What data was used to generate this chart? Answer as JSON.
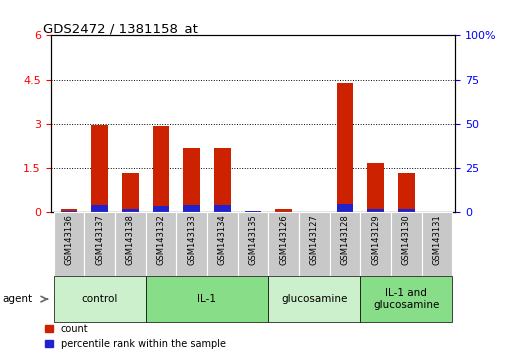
{
  "title": "GDS2472 / 1381158_at",
  "samples": [
    "GSM143136",
    "GSM143137",
    "GSM143138",
    "GSM143132",
    "GSM143133",
    "GSM143134",
    "GSM143135",
    "GSM143126",
    "GSM143127",
    "GSM143128",
    "GSM143129",
    "GSM143130",
    "GSM143131"
  ],
  "red_values": [
    0.12,
    2.95,
    1.35,
    2.93,
    2.18,
    2.18,
    0.03,
    0.1,
    0.03,
    4.38,
    1.68,
    1.35,
    0.03
  ],
  "blue_values_pct": [
    1.0,
    4.0,
    2.0,
    3.5,
    4.0,
    4.0,
    1.0,
    0.5,
    0.5,
    4.5,
    2.0,
    2.0,
    0.5
  ],
  "ylim_left": [
    0,
    6
  ],
  "ylim_right": [
    0,
    100
  ],
  "yticks_left": [
    0,
    1.5,
    3.0,
    4.5,
    6
  ],
  "yticks_right": [
    0,
    25,
    50,
    75,
    100
  ],
  "groups": [
    {
      "label": "control",
      "start": 0,
      "end": 2,
      "color": "#ccf0cc"
    },
    {
      "label": "IL-1",
      "start": 3,
      "end": 6,
      "color": "#88dd88"
    },
    {
      "label": "glucosamine",
      "start": 7,
      "end": 9,
      "color": "#ccf0cc"
    },
    {
      "label": "IL-1 and\nglucosamine",
      "start": 10,
      "end": 12,
      "color": "#88dd88"
    }
  ],
  "bar_width": 0.55,
  "red_color": "#cc2200",
  "blue_color": "#2222cc",
  "plot_bg": "#ffffff",
  "agent_label": "agent",
  "legend_labels": [
    "count",
    "percentile rank within the sample"
  ],
  "sample_box_color": "#c8c8c8",
  "sample_box_edge": "#ffffff"
}
